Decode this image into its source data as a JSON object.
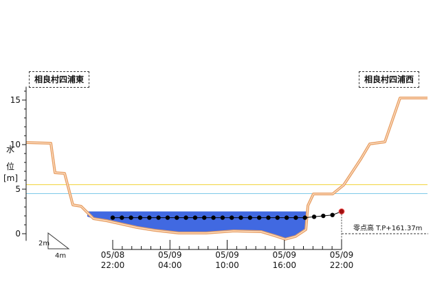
{
  "bank_left_label": "相良村四浦東",
  "bank_right_label": "相良村四浦西",
  "zero_point_label": "零点高 T.P+161.37m",
  "scale_legend": {
    "vertical": "2m",
    "horizontal": "4m"
  },
  "colors": {
    "bank": "#e8a066",
    "water": "#4169e1",
    "level_line": "#000000",
    "current_marker": "#a01010",
    "threshold_yellow": "#f2d43c",
    "threshold_cyan": "#7cc8e8"
  },
  "chart_data": {
    "type": "line",
    "ylabel": "水位[m]",
    "ylim": [
      -0.8,
      16.5
    ],
    "yticks": [
      0,
      5,
      10,
      15
    ],
    "threshold_lines": [
      5.5,
      4.5
    ],
    "x_tick_labels": [
      {
        "date": "05/08",
        "time": "22:00"
      },
      {
        "date": "05/09",
        "time": "04:00"
      },
      {
        "date": "05/09",
        "time": "10:00"
      },
      {
        "date": "05/09",
        "time": "16:00"
      },
      {
        "date": "05/09",
        "time": "22:00"
      }
    ],
    "current_water_level": 2.5,
    "water_level_series": [
      1.8,
      1.8,
      1.8,
      1.8,
      1.8,
      1.8,
      1.8,
      1.8,
      1.8,
      1.8,
      1.8,
      1.8,
      1.8,
      1.8,
      1.8,
      1.8,
      1.8,
      1.8,
      1.8,
      1.8,
      1.8,
      1.8,
      1.9,
      2.0,
      2.1,
      2.5
    ]
  }
}
